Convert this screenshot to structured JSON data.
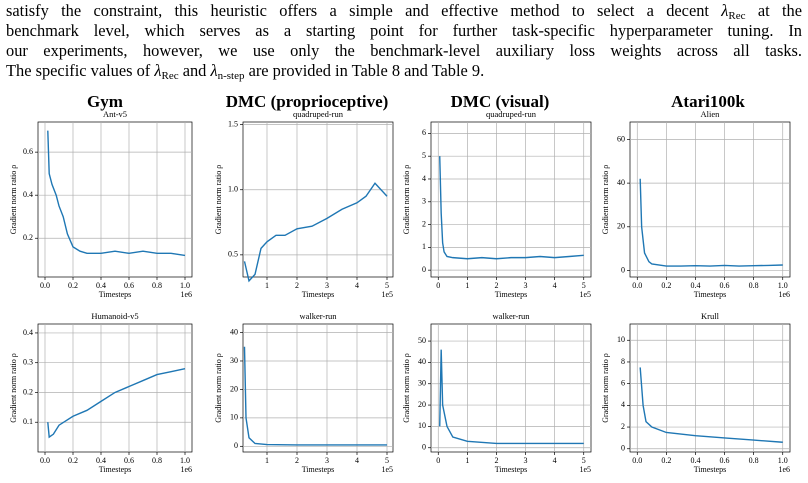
{
  "paragraph": {
    "lines": [
      [
        "satisfy the constraint, this heuristic offers a simple and effective method to select a decent ",
        "λ",
        "Rec",
        " at the"
      ],
      [
        "benchmark level, which serves as a starting point for further task-specific hyperparameter tuning. In"
      ],
      [
        "our experiments, however, we use only the benchmark-level auxiliary loss weights across all tasks."
      ],
      [
        "The specific values of ",
        "λ",
        "Rec",
        " and ",
        "λ",
        "n-step",
        " are provided in Table 8 and Table 9."
      ]
    ]
  },
  "column_titles": [
    "Gym",
    "DMC (proprioceptive)",
    "DMC (visual)",
    "Atari100k"
  ],
  "chart_data": [
    {
      "type": "line",
      "title": "Ant-v5",
      "xlabel": "Timesteps",
      "ylabel": "Gradient norm ratio ρ",
      "x_offset_label": "1e6",
      "color": "#1f77b4",
      "grid": true,
      "x": [
        0.02,
        0.03,
        0.05,
        0.08,
        0.1,
        0.13,
        0.16,
        0.2,
        0.25,
        0.3,
        0.4,
        0.5,
        0.6,
        0.7,
        0.8,
        0.9,
        1.0
      ],
      "values": [
        0.7,
        0.5,
        0.45,
        0.4,
        0.35,
        0.3,
        0.22,
        0.16,
        0.14,
        0.13,
        0.13,
        0.14,
        0.13,
        0.14,
        0.13,
        0.13,
        0.12
      ],
      "xlim": [
        -0.05,
        1.05
      ],
      "ylim": [
        0.02,
        0.74
      ],
      "xticks": [
        {
          "value": 0,
          "label": "0.0"
        },
        0.2,
        0.4,
        0.6,
        0.8,
        {
          "value": 1,
          "label": "1.0"
        }
      ],
      "yticks": [
        0.2,
        0.4,
        0.6
      ]
    },
    {
      "type": "line",
      "title": "quadruped-run",
      "xlabel": "Timesteps",
      "ylabel": "Gradient norm ratio ρ",
      "x_offset_label": "1e5",
      "color": "#1f77b4",
      "grid": true,
      "x": [
        0.25,
        0.4,
        0.6,
        0.8,
        1.0,
        1.3,
        1.6,
        2.0,
        2.5,
        3.0,
        3.5,
        4.0,
        4.3,
        4.6,
        4.8,
        5.0
      ],
      "values": [
        0.45,
        0.3,
        0.35,
        0.55,
        0.6,
        0.65,
        0.65,
        0.7,
        0.72,
        0.78,
        0.85,
        0.9,
        0.95,
        1.05,
        1.0,
        0.95
      ],
      "xlim": [
        0.2,
        5.2
      ],
      "ylim": [
        0.33,
        1.52
      ],
      "xticks": [
        1,
        2,
        3,
        4,
        5
      ],
      "yticks": [
        0.5,
        {
          "value": 1,
          "label": "1.0"
        },
        1.5
      ]
    },
    {
      "type": "line",
      "title": "quadruped-run",
      "xlabel": "Timesteps",
      "ylabel": "Gradient norm ratio ρ",
      "x_offset_label": "1e5",
      "color": "#1f77b4",
      "grid": true,
      "x": [
        0.05,
        0.1,
        0.15,
        0.2,
        0.3,
        0.5,
        1.0,
        1.5,
        2.0,
        2.5,
        3.0,
        3.5,
        4.0,
        4.5,
        5.0
      ],
      "values": [
        5.0,
        2.5,
        1.2,
        0.8,
        0.6,
        0.55,
        0.5,
        0.55,
        0.5,
        0.55,
        0.55,
        0.6,
        0.55,
        0.6,
        0.65
      ],
      "xlim": [
        -0.25,
        5.25
      ],
      "ylim": [
        -0.3,
        6.5
      ],
      "xticks": [
        0,
        1,
        2,
        3,
        4,
        5
      ],
      "yticks": [
        0,
        1,
        2,
        3,
        4,
        5,
        6
      ]
    },
    {
      "type": "line",
      "title": "Alien",
      "xlabel": "Timesteps",
      "ylabel": "Gradient norm ratio ρ",
      "x_offset_label": "1e6",
      "color": "#1f77b4",
      "grid": true,
      "x": [
        0.02,
        0.03,
        0.05,
        0.08,
        0.1,
        0.2,
        0.3,
        0.4,
        0.5,
        0.6,
        0.7,
        0.8,
        0.9,
        1.0
      ],
      "values": [
        42,
        20,
        8,
        4,
        3,
        2,
        2,
        2.2,
        2,
        2.3,
        2,
        2.2,
        2.3,
        2.5
      ],
      "xlim": [
        -0.05,
        1.05
      ],
      "ylim": [
        -3,
        68
      ],
      "xticks": [
        {
          "value": 0,
          "label": "0.0"
        },
        0.2,
        0.4,
        0.6,
        0.8,
        {
          "value": 1,
          "label": "1.0"
        }
      ],
      "yticks": [
        0,
        20,
        40,
        60
      ]
    },
    {
      "type": "line",
      "title": "Humanoid-v5",
      "xlabel": "Timesteps",
      "ylabel": "Gradient norm ratio ρ",
      "x_offset_label": "1e6",
      "color": "#1f77b4",
      "grid": true,
      "x": [
        0.02,
        0.03,
        0.06,
        0.1,
        0.2,
        0.3,
        0.4,
        0.5,
        0.6,
        0.7,
        0.8,
        0.9,
        1.0
      ],
      "values": [
        0.1,
        0.05,
        0.06,
        0.09,
        0.12,
        0.14,
        0.17,
        0.2,
        0.22,
        0.24,
        0.26,
        0.27,
        0.28
      ],
      "xlim": [
        -0.05,
        1.05
      ],
      "ylim": [
        0.0,
        0.43
      ],
      "xticks": [
        {
          "value": 0,
          "label": "0.0"
        },
        0.2,
        0.4,
        0.6,
        0.8,
        {
          "value": 1,
          "label": "1.0"
        }
      ],
      "yticks": [
        0.1,
        0.2,
        0.3,
        0.4
      ]
    },
    {
      "type": "line",
      "title": "walker-run",
      "xlabel": "Timesteps",
      "ylabel": "Gradient norm ratio ρ",
      "x_offset_label": "1e5",
      "color": "#1f77b4",
      "grid": true,
      "x": [
        0.25,
        0.3,
        0.4,
        0.6,
        1.0,
        2.0,
        3.0,
        4.0,
        5.0
      ],
      "values": [
        35,
        10,
        3,
        1,
        0.6,
        0.5,
        0.5,
        0.5,
        0.5
      ],
      "xlim": [
        0.2,
        5.2
      ],
      "ylim": [
        -2,
        43
      ],
      "xticks": [
        1,
        2,
        3,
        4,
        5
      ],
      "yticks": [
        0,
        10,
        20,
        30,
        40
      ]
    },
    {
      "type": "line",
      "title": "walker-run",
      "xlabel": "Timesteps",
      "ylabel": "Gradient norm ratio ρ",
      "x_offset_label": "1e5",
      "color": "#1f77b4",
      "grid": true,
      "x": [
        0.05,
        0.1,
        0.15,
        0.3,
        0.5,
        1.0,
        2.0,
        3.0,
        4.0,
        5.0
      ],
      "values": [
        10,
        46,
        20,
        10,
        5,
        3,
        2,
        2,
        2,
        2
      ],
      "xlim": [
        -0.25,
        5.25
      ],
      "ylim": [
        -2,
        58
      ],
      "xticks": [
        0,
        1,
        2,
        3,
        4,
        5
      ],
      "yticks": [
        0,
        10,
        20,
        30,
        40,
        50
      ]
    },
    {
      "type": "line",
      "title": "Krull",
      "xlabel": "Timesteps",
      "ylabel": "Gradient norm ratio ρ",
      "x_offset_label": "1e6",
      "color": "#1f77b4",
      "grid": true,
      "x": [
        0.02,
        0.04,
        0.06,
        0.1,
        0.2,
        0.4,
        0.6,
        0.8,
        1.0
      ],
      "values": [
        7.5,
        4,
        2.5,
        2,
        1.5,
        1.2,
        1,
        0.8,
        0.6
      ],
      "xlim": [
        -0.05,
        1.05
      ],
      "ylim": [
        -0.3,
        11.5
      ],
      "xticks": [
        {
          "value": 0,
          "label": "0.0"
        },
        0.2,
        0.4,
        0.6,
        0.8,
        {
          "value": 1,
          "label": "1.0"
        }
      ],
      "yticks": [
        0,
        2,
        4,
        6,
        8,
        10
      ]
    }
  ]
}
